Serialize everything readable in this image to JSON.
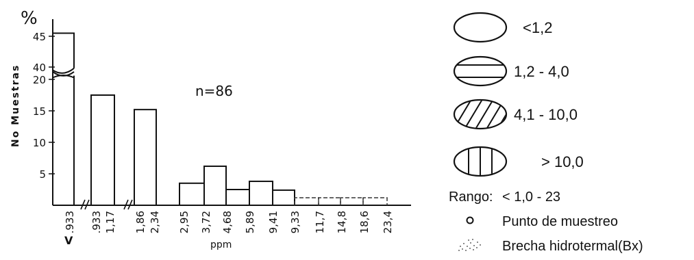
{
  "chart_data": {
    "type": "bar",
    "yunit": "%",
    "ylabel": "No Muestras",
    "xlabel": "ppm",
    "annotation": "n=86",
    "yticks_lower": [
      5,
      10,
      15,
      20
    ],
    "yticks_upper": [
      40,
      45
    ],
    "bins": [
      {
        "from": "",
        "to": ".933",
        "prefix": "<",
        "value": 45.5
      },
      {
        "from": ".933",
        "to": "1,17",
        "value": 17.5
      },
      {
        "from": "1,86",
        "to": "2,34",
        "value": 15.2
      },
      {
        "from": "2,95",
        "to": "3,72",
        "value": 3.5
      },
      {
        "from": "3,72",
        "to": "4,68",
        "value": 6.2
      },
      {
        "from": "4,68",
        "to": "5,89",
        "value": 2.5
      },
      {
        "from": "5,89",
        "to": "9,41",
        "value": 3.8
      },
      {
        "from": "9,41",
        "to": "9,33",
        "value": 2.4
      },
      {
        "from": "9,33",
        "to": "11,7",
        "value": 1.2
      },
      {
        "from": "11,7",
        "to": "14,8",
        "value": 1.2
      },
      {
        "from": "14,8",
        "to": "18,6",
        "value": 1.2
      },
      {
        "from": "18,6",
        "to": "23,4",
        "value": 1.2
      }
    ],
    "xtick_labels": [
      ".933",
      ".933",
      "1,17",
      "1,86",
      "2,34",
      "2,95",
      "3,72",
      "4,68",
      "5,89",
      "9,41",
      "9,33",
      "11,7",
      "14,8",
      "18,6",
      "23,4"
    ],
    "first_tick_prefix": "V"
  },
  "legend": {
    "items": [
      {
        "label": "<1,2",
        "symbol": "ellipse-empty"
      },
      {
        "label": "1,2 - 4,0",
        "symbol": "ellipse-horizontal-band"
      },
      {
        "label": "4,1 - 10,0",
        "symbol": "ellipse-diagonal-hatch"
      },
      {
        "label": "> 10,0",
        "symbol": "ellipse-vertical-hatch"
      }
    ],
    "range_label": "Rango:",
    "range_value": "< 1,0 - 23",
    "sample_point_label": "Punto de muestreo",
    "breccia_label": "Brecha hidrotermal(Bx)"
  }
}
